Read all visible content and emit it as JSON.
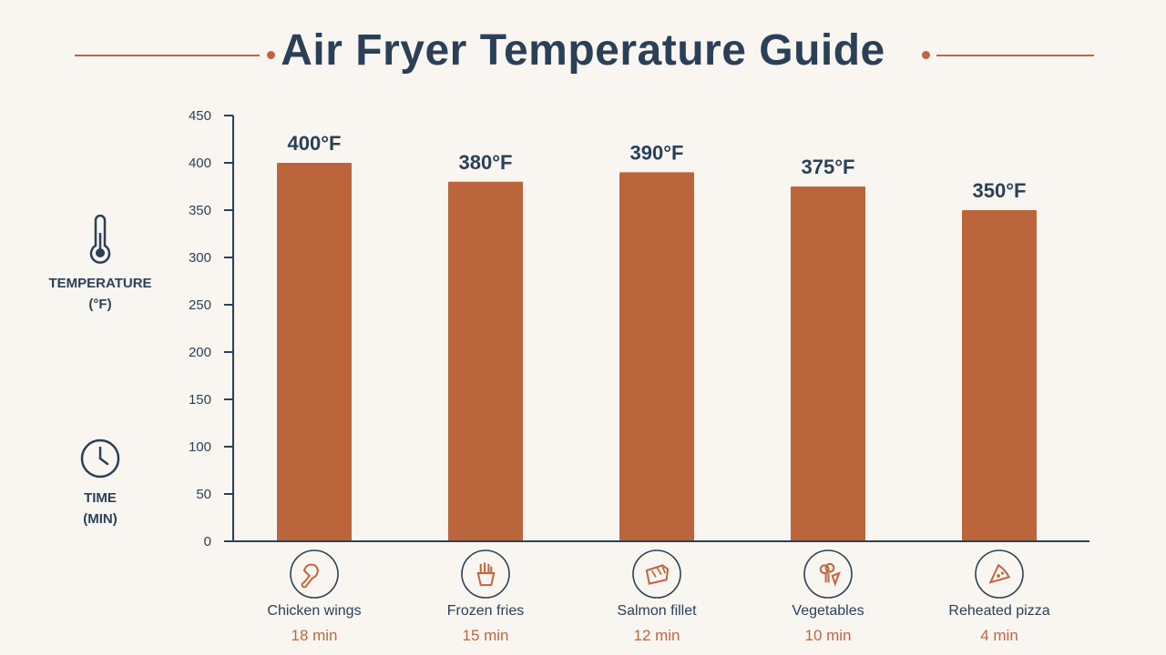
{
  "title": "Air Fryer Temperature Guide",
  "legend": {
    "temperature_line1": "TEMPERATURE",
    "temperature_line2": "(°F)",
    "time_line1": "TIME",
    "time_line2": "(MIN)"
  },
  "colors": {
    "bar": "#ba653b",
    "accent": "#c0653e",
    "text": "#2b4057",
    "background": "#f9f6f1"
  },
  "chart_data": {
    "type": "bar",
    "title": "Air Fryer Temperature Guide",
    "categories": [
      "Chicken wings",
      "Frozen fries",
      "Salmon fillet",
      "Vegetables",
      "Reheated pizza"
    ],
    "values": [
      400,
      380,
      390,
      375,
      350
    ],
    "value_labels": [
      "400°F",
      "380°F",
      "390°F",
      "375°F",
      "350°F"
    ],
    "times": [
      "18 min",
      "15 min",
      "12 min",
      "10 min",
      "4 min"
    ],
    "icons": [
      "chicken-leg-icon",
      "fries-icon",
      "salmon-icon",
      "vegetables-icon",
      "pizza-icon"
    ],
    "ylabel": "TEMPERATURE (°F)",
    "ylim": [
      0,
      450
    ],
    "yticks": [
      0,
      50,
      100,
      150,
      200,
      250,
      300,
      350,
      400,
      450
    ],
    "grid": false
  }
}
